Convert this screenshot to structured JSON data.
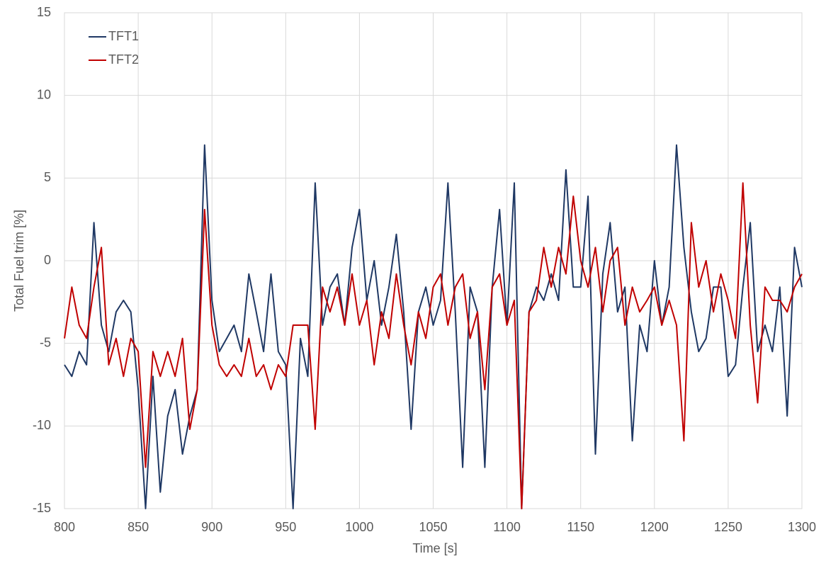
{
  "chart_data": {
    "type": "line",
    "x_label": "Time [s]",
    "y_label": "Total Fuel trim [%]",
    "xlim": [
      800,
      1300
    ],
    "xticks": [
      800,
      850,
      900,
      950,
      1000,
      1050,
      1100,
      1150,
      1200,
      1250,
      1300
    ],
    "ylim": [
      -15,
      15
    ],
    "yticks": [
      -15,
      -10,
      -5,
      0,
      5,
      10,
      15
    ],
    "grid": true,
    "legend": "top-left",
    "x": [
      800,
      805,
      810,
      815,
      820,
      825,
      830,
      835,
      840,
      845,
      850,
      855,
      860,
      865,
      870,
      875,
      880,
      885,
      890,
      895,
      900,
      905,
      910,
      915,
      920,
      925,
      930,
      935,
      940,
      945,
      950,
      955,
      960,
      965,
      970,
      975,
      980,
      985,
      990,
      995,
      1000,
      1005,
      1010,
      1015,
      1020,
      1025,
      1030,
      1035,
      1040,
      1045,
      1050,
      1055,
      1060,
      1065,
      1070,
      1075,
      1080,
      1085,
      1090,
      1095,
      1100,
      1105,
      1110,
      1115,
      1120,
      1125,
      1130,
      1135,
      1140,
      1145,
      1150,
      1155,
      1160,
      1165,
      1170,
      1175,
      1180,
      1185,
      1190,
      1195,
      1200,
      1205,
      1210,
      1215,
      1220,
      1225,
      1230,
      1235,
      1240,
      1245,
      1250,
      1255,
      1260,
      1265,
      1270,
      1275,
      1280,
      1285,
      1290,
      1295,
      1300
    ],
    "series": [
      {
        "name": "TFT1",
        "color": "#1f3864",
        "values": [
          -6.3,
          -7,
          -5.5,
          -6.3,
          2.3,
          -3.9,
          -5.5,
          -3.1,
          -2.4,
          -3.1,
          -7.8,
          -15,
          -7,
          -14,
          -9.4,
          -7.8,
          -11.7,
          -9.4,
          -7.8,
          7,
          -2.4,
          -5.5,
          -4.7,
          -3.9,
          -5.5,
          -0.8,
          -3.1,
          -5.5,
          -0.8,
          -5.5,
          -6.3,
          -15,
          -4.7,
          -7,
          4.7,
          -3.9,
          -1.6,
          -0.8,
          -3.9,
          0.8,
          3.1,
          -2.4,
          0,
          -3.9,
          -1.6,
          1.6,
          -3.1,
          -10.2,
          -3.1,
          -1.6,
          -3.9,
          -2.4,
          4.7,
          -3.1,
          -12.5,
          -1.6,
          -3.1,
          -12.5,
          -1.6,
          3.1,
          -3.9,
          4.7,
          -15,
          -3.1,
          -1.6,
          -2.4,
          -0.8,
          -2.4,
          5.5,
          -1.6,
          -1.6,
          3.9,
          -11.7,
          -0.8,
          2.3,
          -3.1,
          -1.6,
          -10.9,
          -3.9,
          -5.5,
          0,
          -3.9,
          -1.6,
          7,
          0.8,
          -3.1,
          -5.5,
          -4.7,
          -1.6,
          -1.6,
          -7,
          -6.3,
          -1.6,
          2.3,
          -5.5,
          -3.9,
          -5.5,
          -1.6,
          -9.4,
          0.8,
          -1.6
        ]
      },
      {
        "name": "TFT2",
        "color": "#c00000",
        "values": [
          -4.7,
          -1.6,
          -3.9,
          -4.7,
          -1.6,
          0.8,
          -6.3,
          -4.7,
          -7,
          -4.7,
          -5.5,
          -12.5,
          -5.5,
          -7,
          -5.5,
          -7,
          -4.7,
          -10.2,
          -7.8,
          3.1,
          -3.9,
          -6.3,
          -7,
          -6.3,
          -7,
          -4.7,
          -7,
          -6.3,
          -7.8,
          -6.3,
          -7,
          -3.9,
          -3.9,
          -3.9,
          -10.2,
          -1.6,
          -3.1,
          -1.6,
          -3.9,
          -0.8,
          -3.9,
          -2.4,
          -6.3,
          -3.1,
          -4.7,
          -0.8,
          -3.9,
          -6.3,
          -3.1,
          -4.7,
          -1.6,
          -0.8,
          -3.9,
          -1.6,
          -0.8,
          -4.7,
          -3.1,
          -7.8,
          -1.6,
          -0.8,
          -3.9,
          -2.4,
          -15,
          -3.1,
          -2.4,
          0.8,
          -1.6,
          0.8,
          -0.8,
          3.9,
          0,
          -1.6,
          0.8,
          -3.1,
          0,
          0.8,
          -3.9,
          -1.6,
          -3.1,
          -2.4,
          -1.6,
          -3.9,
          -2.4,
          -3.9,
          -10.9,
          2.3,
          -1.6,
          0,
          -3.1,
          -0.8,
          -2.4,
          -4.7,
          4.7,
          -3.9,
          -8.6,
          -1.6,
          -2.4,
          -2.4,
          -3.1,
          -1.6,
          -0.8
        ]
      }
    ]
  }
}
